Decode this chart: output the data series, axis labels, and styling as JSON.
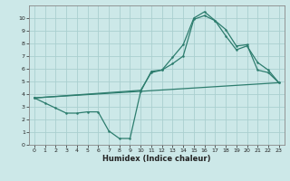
{
  "line1_x": [
    0,
    1,
    2,
    3,
    4,
    5,
    6,
    7,
    8,
    9,
    10,
    11,
    12,
    13,
    14,
    15,
    16,
    17,
    18,
    19,
    20,
    21,
    22,
    23
  ],
  "line1_y": [
    3.7,
    3.3,
    2.9,
    2.5,
    2.5,
    2.6,
    2.6,
    1.1,
    0.5,
    0.5,
    4.2,
    5.8,
    5.9,
    6.9,
    7.9,
    10.0,
    10.5,
    9.8,
    9.1,
    7.8,
    7.9,
    5.9,
    5.7,
    4.9
  ],
  "line2_x": [
    0,
    23
  ],
  "line2_y": [
    3.7,
    4.9
  ],
  "line3_x": [
    0,
    10,
    11,
    12,
    13,
    14,
    15,
    16,
    17,
    18,
    19,
    20,
    21,
    22,
    23
  ],
  "line3_y": [
    3.7,
    4.3,
    5.7,
    5.9,
    6.4,
    7.0,
    9.9,
    10.2,
    9.8,
    8.6,
    7.5,
    7.8,
    6.5,
    5.9,
    4.9
  ],
  "color": "#2d7d6e",
  "bg_color": "#cce8e8",
  "grid_color": "#aacfcf",
  "xlabel": "Humidex (Indice chaleur)",
  "xlim": [
    -0.5,
    23.5
  ],
  "ylim": [
    0,
    11
  ],
  "xticks": [
    0,
    1,
    2,
    3,
    4,
    5,
    6,
    7,
    8,
    9,
    10,
    11,
    12,
    13,
    14,
    15,
    16,
    17,
    18,
    19,
    20,
    21,
    22,
    23
  ],
  "yticks": [
    0,
    1,
    2,
    3,
    4,
    5,
    6,
    7,
    8,
    9,
    10
  ]
}
